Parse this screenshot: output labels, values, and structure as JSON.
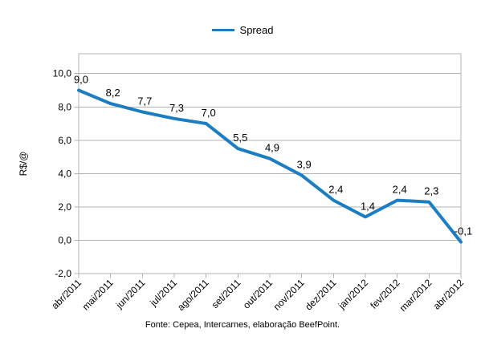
{
  "footer": {
    "source": "Fonte: Cepea, Intercarnes, elaboração BeefPoint."
  },
  "chart_data": {
    "type": "line",
    "title": "",
    "categories": [
      "abr/2011",
      "mai/2011",
      "jun/2011",
      "jul/2011",
      "ago/2011",
      "set/2011",
      "out/2011",
      "nov/2011",
      "dez/2011",
      "jan/2012",
      "fev/2012",
      "mar/2012",
      "abr/2012"
    ],
    "series": [
      {
        "name": "Spread",
        "values": [
          9.0,
          8.2,
          7.7,
          7.3,
          7.0,
          5.5,
          4.9,
          3.9,
          2.4,
          1.4,
          2.4,
          2.3,
          -0.1
        ],
        "data_labels": [
          "9,0",
          "8,2",
          "7,7",
          "7,3",
          "7,0",
          "5,5",
          "4,9",
          "3,9",
          "2,4",
          "1,4",
          "2,4",
          "2,3",
          "-0,1"
        ]
      }
    ],
    "xlabel": "",
    "ylabel": "R$/@",
    "ylim": [
      -2,
      10
    ],
    "ytick_values": [
      10,
      8,
      6,
      4,
      2,
      0,
      -2
    ],
    "ytick_labels": [
      "10,0",
      "8,0",
      "6,0",
      "4,0",
      "2,0",
      "0,0",
      "-2,0"
    ],
    "grid": "horizontal",
    "legend_position": "top",
    "colors": {
      "line": "#1b7dc2",
      "grid": "#b3b3b3",
      "border": "#b3b3b3",
      "text": "#000000"
    }
  }
}
